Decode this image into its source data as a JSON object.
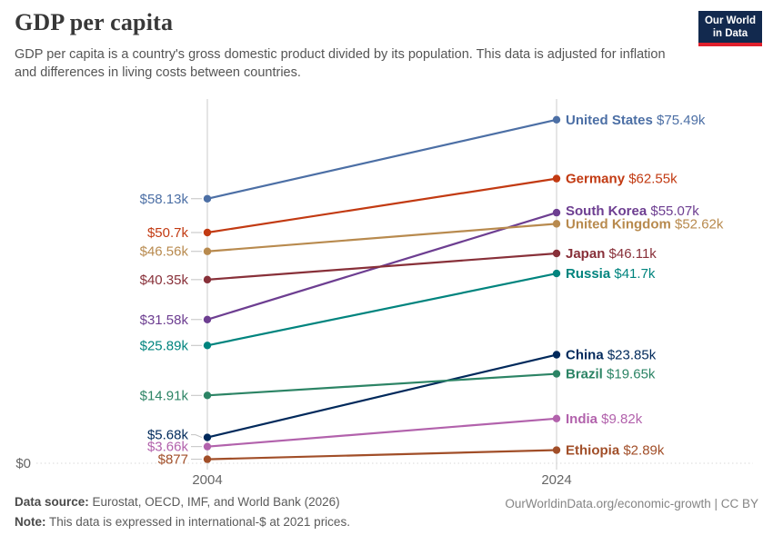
{
  "header": {
    "title": "GDP per capita",
    "subtitle_line1": "GDP per capita is a country's gross domestic product divided by its population. This data is adjusted for inflation",
    "subtitle_line2": "and differences in living costs between countries.",
    "logo": {
      "line1": "Our World",
      "line2": "in Data",
      "bg_color": "#12294e",
      "stripe_color": "#e0202c"
    }
  },
  "chart_data": {
    "type": "line",
    "title": "GDP per capita",
    "x": [
      2004,
      2024
    ],
    "x_labels": [
      "2004",
      "2024"
    ],
    "ylim": [
      0,
      80000
    ],
    "ylabel": "international-$ at 2021 prices",
    "zero_label": "$0",
    "grid": "zero-line-only",
    "legend_position": "end-of-line-labels",
    "series": [
      {
        "name": "United States",
        "color": "#4C6FA5",
        "values": [
          58130,
          75490
        ],
        "left_label": "$58.13k",
        "right_label": "$75.49k"
      },
      {
        "name": "Germany",
        "color": "#C23A12",
        "values": [
          50700,
          62550
        ],
        "left_label": "$50.7k",
        "right_label": "$62.55k"
      },
      {
        "name": "South Korea",
        "color": "#6D3E91",
        "values": [
          31580,
          55070
        ],
        "left_label": "$31.58k",
        "right_label": "$55.07k"
      },
      {
        "name": "United Kingdom",
        "color": "#B88A4E",
        "values": [
          46560,
          52620
        ],
        "left_label": "$46.56k",
        "right_label": "$52.62k"
      },
      {
        "name": "Japan",
        "color": "#883039",
        "values": [
          40350,
          46110
        ],
        "left_label": "$40.35k",
        "right_label": "$46.11k"
      },
      {
        "name": "Russia",
        "color": "#00847E",
        "values": [
          25890,
          41700
        ],
        "left_label": "$25.89k",
        "right_label": "$41.7k"
      },
      {
        "name": "China",
        "color": "#00295B",
        "values": [
          5680,
          23850
        ],
        "left_label": "$5.68k",
        "right_label": "$23.85k"
      },
      {
        "name": "Brazil",
        "color": "#2C8465",
        "values": [
          14910,
          19650
        ],
        "left_label": "$14.91k",
        "right_label": "$19.65k"
      },
      {
        "name": "India",
        "color": "#B262AC",
        "values": [
          3660,
          9820
        ],
        "left_label": "$3.66k",
        "right_label": "$9.82k"
      },
      {
        "name": "Ethiopia",
        "color": "#A14E28",
        "values": [
          877,
          2890
        ],
        "left_label": "$877",
        "right_label": "$2.89k"
      }
    ]
  },
  "footer": {
    "source_label": "Data source:",
    "source_text": " Eurostat, OECD, IMF, and World Bank (2026)",
    "note_label": "Note:",
    "note_text": " This data is expressed in international-$ at 2021 prices.",
    "credit": "OurWorldinData.org/economic-growth | CC BY"
  }
}
